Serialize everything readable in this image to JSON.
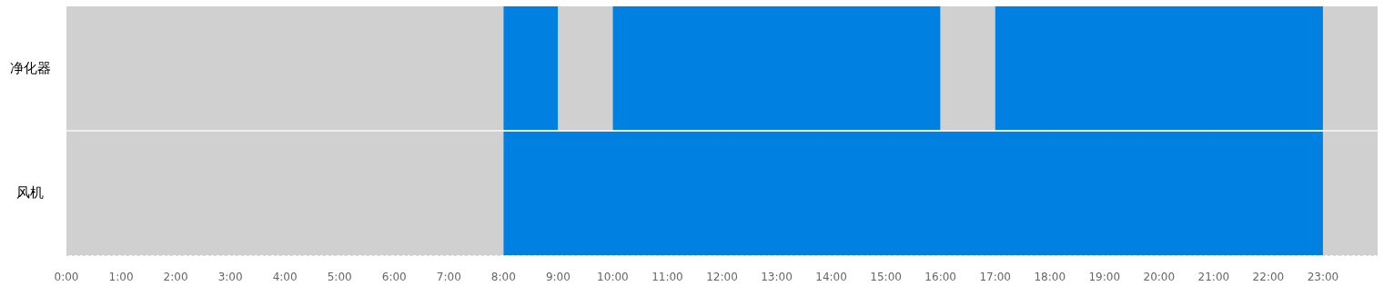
{
  "chart_data": {
    "type": "bar",
    "orientation": "horizontal",
    "categories": [
      "净化器",
      "风机"
    ],
    "xlim": [
      0,
      24
    ],
    "xticks": [
      {
        "value": 0,
        "label": "0:00"
      },
      {
        "value": 1,
        "label": "1:00"
      },
      {
        "value": 2,
        "label": "2:00"
      },
      {
        "value": 3,
        "label": "3:00"
      },
      {
        "value": 4,
        "label": "4:00"
      },
      {
        "value": 5,
        "label": "5:00"
      },
      {
        "value": 6,
        "label": "6:00"
      },
      {
        "value": 7,
        "label": "7:00"
      },
      {
        "value": 8,
        "label": "8:00"
      },
      {
        "value": 9,
        "label": "9:00"
      },
      {
        "value": 10,
        "label": "10:00"
      },
      {
        "value": 11,
        "label": "11:00"
      },
      {
        "value": 12,
        "label": "12:00"
      },
      {
        "value": 13,
        "label": "13:00"
      },
      {
        "value": 14,
        "label": "14:00"
      },
      {
        "value": 15,
        "label": "15:00"
      },
      {
        "value": 16,
        "label": "16:00"
      },
      {
        "value": 17,
        "label": "17:00"
      },
      {
        "value": 18,
        "label": "18:00"
      },
      {
        "value": 19,
        "label": "19:00"
      },
      {
        "value": 20,
        "label": "20:00"
      },
      {
        "value": 21,
        "label": "21:00"
      },
      {
        "value": 22,
        "label": "22:00"
      },
      {
        "value": 23,
        "label": "23:00"
      }
    ],
    "series": [
      {
        "color": "#d0d0d0",
        "values": [
          8,
          8
        ],
        "base": [
          0,
          0
        ]
      },
      {
        "color": "#0080e0",
        "values": [
          1,
          15
        ],
        "base": [
          8,
          8
        ]
      },
      {
        "color": "#d0d0d0",
        "values": [
          1,
          null
        ],
        "base": [
          9,
          null
        ]
      },
      {
        "color": "#0080e0",
        "values": [
          6,
          null
        ],
        "base": [
          10,
          null
        ]
      },
      {
        "color": "#d0d0d0",
        "values": [
          1,
          null
        ],
        "base": [
          16,
          null
        ]
      },
      {
        "color": "#0080e0",
        "values": [
          6,
          null
        ],
        "base": [
          17,
          null
        ]
      },
      {
        "color": "#d0d0d0",
        "values": [
          1,
          1
        ],
        "base": [
          23,
          23
        ]
      }
    ]
  }
}
